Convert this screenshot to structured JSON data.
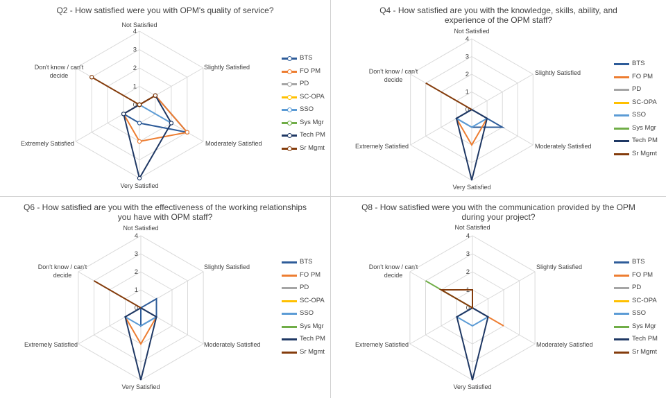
{
  "colors": {
    "BTS": "#2e5c99",
    "FO PM": "#ed7d31",
    "PD": "#a5a5a5",
    "SC-OPA": "#ffc000",
    "SSO": "#5b9bd5",
    "Sys Mgr": "#70ad47",
    "Tech PM": "#1f3864",
    "Sr Mgmt": "#843c0c"
  },
  "chart_data": [
    {
      "type": "radar",
      "title": "Q2 - How satisfied were you with OPM's quality of service?",
      "axes": [
        "Not Satisfied",
        "Slightly Satisfied",
        "Moderately Satisfied",
        "Very Satisfied",
        "Extremely Satisfied",
        "Don't know / can't decide"
      ],
      "ticks": [
        "0",
        "1",
        "2",
        "3",
        "4"
      ],
      "rmax": 4,
      "markers": true,
      "legend_position": "right",
      "series": [
        {
          "name": "BTS",
          "values": [
            0,
            1,
            3,
            1,
            1,
            0
          ]
        },
        {
          "name": "FO PM",
          "values": [
            0,
            1,
            3,
            2,
            1,
            0
          ]
        },
        {
          "name": "PD",
          "values": [
            0,
            0,
            0,
            0,
            0,
            0
          ]
        },
        {
          "name": "SC-OPA",
          "values": [
            0,
            0,
            0,
            0,
            0,
            0
          ]
        },
        {
          "name": "SSO",
          "values": [
            0,
            0,
            2,
            0,
            0,
            0
          ]
        },
        {
          "name": "Sys Mgr",
          "values": [
            0,
            0,
            0,
            0,
            0,
            0
          ]
        },
        {
          "name": "Tech PM",
          "values": [
            0,
            1,
            2,
            4,
            1,
            0
          ]
        },
        {
          "name": "Sr Mgmt",
          "values": [
            0,
            1,
            0,
            0,
            0,
            3
          ]
        }
      ]
    },
    {
      "type": "radar",
      "title": "Q4 - How satisfied are you with the knowledge, skills, ability, and experience of the OPM staff?",
      "axes": [
        "Not Satisfied",
        "Slightly Satisfied",
        "Moderately Satisfied",
        "Very Satisfied",
        "Extremely Satisfied",
        "Don't know / can't decide"
      ],
      "ticks": [
        "0",
        "1",
        "2",
        "3",
        "4"
      ],
      "rmax": 4,
      "markers": false,
      "legend_position": "right",
      "series": [
        {
          "name": "BTS",
          "values": [
            0,
            0,
            2,
            1,
            1,
            0
          ]
        },
        {
          "name": "FO PM",
          "values": [
            0,
            0,
            1,
            2,
            1,
            0
          ]
        },
        {
          "name": "PD",
          "values": [
            0,
            0,
            0,
            0,
            0,
            0
          ]
        },
        {
          "name": "SC-OPA",
          "values": [
            0,
            0,
            0,
            0,
            0,
            0
          ]
        },
        {
          "name": "SSO",
          "values": [
            0,
            0,
            1,
            1,
            1,
            0
          ]
        },
        {
          "name": "Sys Mgr",
          "values": [
            0,
            0,
            0,
            0,
            0,
            0
          ]
        },
        {
          "name": "Tech PM",
          "values": [
            0,
            0,
            1,
            4,
            1,
            0
          ]
        },
        {
          "name": "Sr Mgmt",
          "values": [
            0,
            0,
            0,
            0,
            0,
            3
          ]
        }
      ]
    },
    {
      "type": "radar",
      "title": "Q6 - How satisfied are you with the effectiveness of the working relationships you have with OPM staff?",
      "axes": [
        "Not Satisfied",
        "Slightly Satisfied",
        "Moderately Satisfied",
        "Very Satisfied",
        "Extremely Satisfied",
        "Don't know / can't decide"
      ],
      "ticks": [
        "0",
        "1",
        "2",
        "3",
        "4"
      ],
      "rmax": 4,
      "markers": false,
      "legend_position": "right",
      "series": [
        {
          "name": "BTS",
          "values": [
            0,
            1,
            1,
            1,
            0,
            0
          ]
        },
        {
          "name": "FO PM",
          "values": [
            0,
            0,
            1,
            2,
            1,
            0
          ]
        },
        {
          "name": "PD",
          "values": [
            0,
            0,
            0,
            0,
            0,
            0
          ]
        },
        {
          "name": "SC-OPA",
          "values": [
            0,
            0,
            0,
            0,
            0,
            0
          ]
        },
        {
          "name": "SSO",
          "values": [
            0,
            0,
            1,
            1,
            1,
            0
          ]
        },
        {
          "name": "Sys Mgr",
          "values": [
            0,
            0,
            0,
            0,
            0,
            0
          ]
        },
        {
          "name": "Tech PM",
          "values": [
            0,
            0,
            1,
            4,
            1,
            0
          ]
        },
        {
          "name": "Sr Mgmt",
          "values": [
            0,
            0,
            0,
            0,
            0,
            3
          ]
        }
      ]
    },
    {
      "type": "radar",
      "title": "Q8 - How satisfied were you with the communication provided by the OPM during your project?",
      "axes": [
        "Not Satisfied",
        "Slightly Satisfied",
        "Moderately Satisfied",
        "Very Satisfied",
        "Extremely Satisfied",
        "Don't know / can't decide"
      ],
      "ticks": [
        "0",
        "1",
        "2",
        "3",
        "4"
      ],
      "rmax": 4,
      "markers": false,
      "legend_position": "right",
      "series": [
        {
          "name": "BTS",
          "values": [
            0,
            0,
            1,
            0,
            0,
            0
          ]
        },
        {
          "name": "FO PM",
          "values": [
            0,
            0,
            2,
            0,
            0,
            0
          ]
        },
        {
          "name": "PD",
          "values": [
            0,
            0,
            0,
            0,
            1,
            0
          ]
        },
        {
          "name": "SC-OPA",
          "values": [
            0,
            0,
            0,
            0,
            0,
            0
          ]
        },
        {
          "name": "SSO",
          "values": [
            0,
            0,
            1,
            1,
            1,
            0
          ]
        },
        {
          "name": "Sys Mgr",
          "values": [
            0,
            0,
            0,
            0,
            0,
            3
          ]
        },
        {
          "name": "Tech PM",
          "values": [
            0,
            0,
            1,
            4,
            1,
            0
          ]
        },
        {
          "name": "Sr Mgmt",
          "values": [
            1,
            0,
            0,
            0,
            0,
            2
          ]
        }
      ]
    }
  ]
}
